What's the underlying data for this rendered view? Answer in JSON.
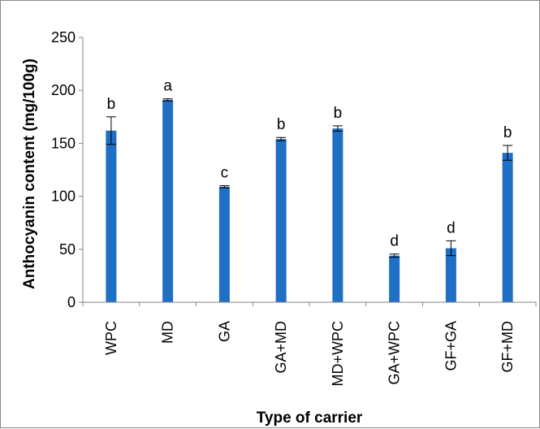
{
  "chart_data": {
    "type": "bar",
    "title": "",
    "xlabel": "Type of carrier",
    "ylabel": "Anthocyanin content (mg/100g)",
    "ylim": [
      0,
      250
    ],
    "yticks": [
      0,
      50,
      100,
      150,
      200,
      250
    ],
    "grid": false,
    "legend": "none",
    "bar_color": "#1F6FC5",
    "categories": [
      "WPC",
      "MD",
      "GA",
      "GA+MD",
      "MD+WPC",
      "GA+WPC",
      "GF+GA",
      "GF+MD"
    ],
    "values": [
      162,
      191,
      109,
      154,
      164,
      44,
      51,
      141
    ],
    "errors": [
      13,
      1,
      1,
      1.5,
      2.5,
      1.5,
      7,
      7
    ],
    "significance_labels": [
      "b",
      "a",
      "c",
      "b",
      "b",
      "d",
      "d",
      "b"
    ]
  }
}
